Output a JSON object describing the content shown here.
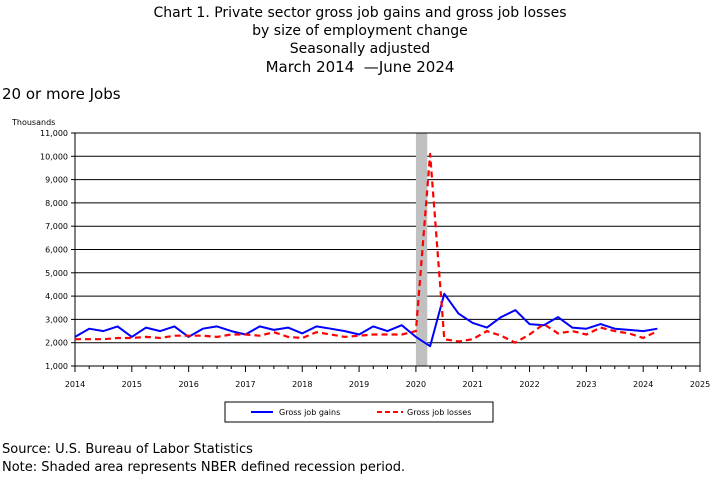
{
  "title": {
    "line1": "Chart 1. Private sector gross job gains and gross job losses",
    "line2": "by size of employment change",
    "line3": "Seasonally adjusted",
    "period_start": "March 2014",
    "period_end": "June 2024"
  },
  "subtitle": "20 or more Jobs",
  "footer": {
    "source": "Source: U.S. Bureau of Labor Statistics",
    "note": "Note: Shaded area represents NBER defined recession period."
  },
  "chart_data": {
    "type": "line",
    "ylabel": "Thousands",
    "ylim": [
      1000,
      11000
    ],
    "yticks": [
      1000,
      2000,
      3000,
      4000,
      5000,
      6000,
      7000,
      8000,
      9000,
      10000,
      11000
    ],
    "ytick_labels": [
      "1,000",
      "2,000",
      "3,000",
      "4,000",
      "5,000",
      "6,000",
      "7,000",
      "8,000",
      "9,000",
      "10,000",
      "11,000"
    ],
    "xlim": [
      2014,
      2025
    ],
    "xticks": [
      2014,
      2015,
      2016,
      2017,
      2018,
      2019,
      2020,
      2021,
      2022,
      2023,
      2024,
      2025
    ],
    "xtick_labels": [
      "2014",
      "2015",
      "2016",
      "2017",
      "2018",
      "2019",
      "2020",
      "2021",
      "2022",
      "2023",
      "2024",
      "2025"
    ],
    "grid": "horizontal",
    "legend_position": "bottom",
    "recession": [
      2020.0,
      2020.2
    ],
    "colors": {
      "gains": "#0000ff",
      "losses": "#ff0000",
      "recession": "#c0c0c0"
    },
    "x": [
      2014.0,
      2014.25,
      2014.5,
      2014.75,
      2015.0,
      2015.25,
      2015.5,
      2015.75,
      2016.0,
      2016.25,
      2016.5,
      2016.75,
      2017.0,
      2017.25,
      2017.5,
      2017.75,
      2018.0,
      2018.25,
      2018.5,
      2018.75,
      2019.0,
      2019.25,
      2019.5,
      2019.75,
      2020.0,
      2020.25,
      2020.5,
      2020.75,
      2021.0,
      2021.25,
      2021.5,
      2021.75,
      2022.0,
      2022.25,
      2022.5,
      2022.75,
      2023.0,
      2023.25,
      2023.5,
      2023.75,
      2024.0,
      2024.25
    ],
    "series": [
      {
        "name": "Gross job gains",
        "values": [
          2250,
          2600,
          2500,
          2700,
          2250,
          2650,
          2500,
          2700,
          2250,
          2600,
          2700,
          2500,
          2350,
          2700,
          2550,
          2650,
          2400,
          2700,
          2600,
          2500,
          2350,
          2700,
          2500,
          2750,
          2250,
          1850,
          4100,
          3250,
          2850,
          2650,
          3100,
          3400,
          2800,
          2750,
          3100,
          2650,
          2600,
          2800,
          2600,
          2550,
          2500,
          2600
        ]
      },
      {
        "name": "Gross job losses",
        "values": [
          2150,
          2150,
          2150,
          2200,
          2200,
          2250,
          2200,
          2300,
          2300,
          2300,
          2250,
          2350,
          2350,
          2300,
          2450,
          2250,
          2200,
          2450,
          2350,
          2250,
          2300,
          2350,
          2350,
          2350,
          2500,
          10100,
          2150,
          2050,
          2150,
          2500,
          2300,
          2000,
          2350,
          2800,
          2400,
          2500,
          2350,
          2650,
          2500,
          2400,
          2200,
          2500
        ]
      }
    ]
  }
}
